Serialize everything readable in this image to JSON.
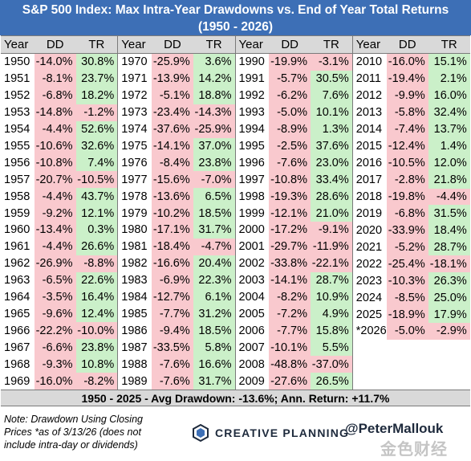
{
  "header": {
    "title_line1": "S&P 500 Index: Max Intra-Year Drawdowns vs. End of Year Total Returns",
    "title_line2": "(1950 - 2026)"
  },
  "column_labels": {
    "year": "Year",
    "dd": "DD",
    "tr": "TR"
  },
  "columns": [
    [
      {
        "year": "1950",
        "dd": "-14.0%",
        "tr": "30.8%"
      },
      {
        "year": "1951",
        "dd": "-8.1%",
        "tr": "23.7%"
      },
      {
        "year": "1952",
        "dd": "-6.8%",
        "tr": "18.2%"
      },
      {
        "year": "1953",
        "dd": "-14.8%",
        "tr": "-1.2%"
      },
      {
        "year": "1954",
        "dd": "-4.4%",
        "tr": "52.6%"
      },
      {
        "year": "1955",
        "dd": "-10.6%",
        "tr": "32.6%"
      },
      {
        "year": "1956",
        "dd": "-10.8%",
        "tr": "7.4%"
      },
      {
        "year": "1957",
        "dd": "-20.7%",
        "tr": "-10.5%"
      },
      {
        "year": "1958",
        "dd": "-4.4%",
        "tr": "43.7%"
      },
      {
        "year": "1959",
        "dd": "-9.2%",
        "tr": "12.1%"
      },
      {
        "year": "1960",
        "dd": "-13.4%",
        "tr": "0.3%"
      },
      {
        "year": "1961",
        "dd": "-4.4%",
        "tr": "26.6%"
      },
      {
        "year": "1962",
        "dd": "-26.9%",
        "tr": "-8.8%"
      },
      {
        "year": "1963",
        "dd": "-6.5%",
        "tr": "22.6%"
      },
      {
        "year": "1964",
        "dd": "-3.5%",
        "tr": "16.4%"
      },
      {
        "year": "1965",
        "dd": "-9.6%",
        "tr": "12.4%"
      },
      {
        "year": "1966",
        "dd": "-22.2%",
        "tr": "-10.0%"
      },
      {
        "year": "1967",
        "dd": "-6.6%",
        "tr": "23.8%"
      },
      {
        "year": "1968",
        "dd": "-9.3%",
        "tr": "10.8%"
      },
      {
        "year": "1969",
        "dd": "-16.0%",
        "tr": "-8.2%"
      }
    ],
    [
      {
        "year": "1970",
        "dd": "-25.9%",
        "tr": "3.6%"
      },
      {
        "year": "1971",
        "dd": "-13.9%",
        "tr": "14.2%"
      },
      {
        "year": "1972",
        "dd": "-5.1%",
        "tr": "18.8%"
      },
      {
        "year": "1973",
        "dd": "-23.4%",
        "tr": "-14.3%"
      },
      {
        "year": "1974",
        "dd": "-37.6%",
        "tr": "-25.9%"
      },
      {
        "year": "1975",
        "dd": "-14.1%",
        "tr": "37.0%"
      },
      {
        "year": "1976",
        "dd": "-8.4%",
        "tr": "23.8%"
      },
      {
        "year": "1977",
        "dd": "-15.6%",
        "tr": "-7.0%"
      },
      {
        "year": "1978",
        "dd": "-13.6%",
        "tr": "6.5%"
      },
      {
        "year": "1979",
        "dd": "-10.2%",
        "tr": "18.5%"
      },
      {
        "year": "1980",
        "dd": "-17.1%",
        "tr": "31.7%"
      },
      {
        "year": "1981",
        "dd": "-18.4%",
        "tr": "-4.7%"
      },
      {
        "year": "1982",
        "dd": "-16.6%",
        "tr": "20.4%"
      },
      {
        "year": "1983",
        "dd": "-6.9%",
        "tr": "22.3%"
      },
      {
        "year": "1984",
        "dd": "-12.7%",
        "tr": "6.1%"
      },
      {
        "year": "1985",
        "dd": "-7.7%",
        "tr": "31.2%"
      },
      {
        "year": "1986",
        "dd": "-9.4%",
        "tr": "18.5%"
      },
      {
        "year": "1987",
        "dd": "-33.5%",
        "tr": "5.8%"
      },
      {
        "year": "1988",
        "dd": "-7.6%",
        "tr": "16.6%"
      },
      {
        "year": "1989",
        "dd": "-7.6%",
        "tr": "31.7%"
      }
    ],
    [
      {
        "year": "1990",
        "dd": "-19.9%",
        "tr": "-3.1%"
      },
      {
        "year": "1991",
        "dd": "-5.7%",
        "tr": "30.5%"
      },
      {
        "year": "1992",
        "dd": "-6.2%",
        "tr": "7.6%"
      },
      {
        "year": "1993",
        "dd": "-5.0%",
        "tr": "10.1%"
      },
      {
        "year": "1994",
        "dd": "-8.9%",
        "tr": "1.3%"
      },
      {
        "year": "1995",
        "dd": "-2.5%",
        "tr": "37.6%"
      },
      {
        "year": "1996",
        "dd": "-7.6%",
        "tr": "23.0%"
      },
      {
        "year": "1997",
        "dd": "-10.8%",
        "tr": "33.4%"
      },
      {
        "year": "1998",
        "dd": "-19.3%",
        "tr": "28.6%"
      },
      {
        "year": "1999",
        "dd": "-12.1%",
        "tr": "21.0%"
      },
      {
        "year": "2000",
        "dd": "-17.2%",
        "tr": "-9.1%"
      },
      {
        "year": "2001",
        "dd": "-29.7%",
        "tr": "-11.9%"
      },
      {
        "year": "2002",
        "dd": "-33.8%",
        "tr": "-22.1%"
      },
      {
        "year": "2003",
        "dd": "-14.1%",
        "tr": "28.7%"
      },
      {
        "year": "2004",
        "dd": "-8.2%",
        "tr": "10.9%"
      },
      {
        "year": "2005",
        "dd": "-7.2%",
        "tr": "4.9%"
      },
      {
        "year": "2006",
        "dd": "-7.7%",
        "tr": "15.8%"
      },
      {
        "year": "2007",
        "dd": "-10.1%",
        "tr": "5.5%"
      },
      {
        "year": "2008",
        "dd": "-48.8%",
        "tr": "-37.0%"
      },
      {
        "year": "2009",
        "dd": "-27.6%",
        "tr": "26.5%"
      }
    ],
    [
      {
        "year": "2010",
        "dd": "-16.0%",
        "tr": "15.1%"
      },
      {
        "year": "2011",
        "dd": "-19.4%",
        "tr": "2.1%"
      },
      {
        "year": "2012",
        "dd": "-9.9%",
        "tr": "16.0%"
      },
      {
        "year": "2013",
        "dd": "-5.8%",
        "tr": "32.4%"
      },
      {
        "year": "2014",
        "dd": "-7.4%",
        "tr": "13.7%"
      },
      {
        "year": "2015",
        "dd": "-12.4%",
        "tr": "1.4%"
      },
      {
        "year": "2016",
        "dd": "-10.5%",
        "tr": "12.0%"
      },
      {
        "year": "2017",
        "dd": "-2.8%",
        "tr": "21.8%"
      },
      {
        "year": "2018",
        "dd": "-19.8%",
        "tr": "-4.4%"
      },
      {
        "year": "2019",
        "dd": "-6.8%",
        "tr": "31.5%"
      },
      {
        "year": "2020",
        "dd": "-33.9%",
        "tr": "18.4%"
      },
      {
        "year": "2021",
        "dd": "-5.2%",
        "tr": "28.7%"
      },
      {
        "year": "2022",
        "dd": "-25.4%",
        "tr": "-18.1%"
      },
      {
        "year": "2023",
        "dd": "-10.3%",
        "tr": "26.3%"
      },
      {
        "year": "2024",
        "dd": "-8.5%",
        "tr": "25.0%"
      },
      {
        "year": "2025",
        "dd": "-18.9%",
        "tr": "17.9%"
      },
      {
        "year": "*2026",
        "dd": "-5.0%",
        "tr": "-2.9%"
      }
    ]
  ],
  "summary": "1950 - 2025 - Avg Drawdown: -13.6%; Ann. Return: +11.7%",
  "footer": {
    "note": "Note: Drawdown Using Closing Prices *as of 3/13/26 (does not include intra-day or dividends)",
    "brand": "CREATIVE PLANNING",
    "handle": "@PeterMallouk",
    "watermark": "金色财经"
  },
  "colors": {
    "header_bg": "#3d6fb6",
    "negative_fill": "#f9c9ce",
    "positive_fill": "#cbf0c9",
    "label_bg": "#d9d9d9"
  }
}
